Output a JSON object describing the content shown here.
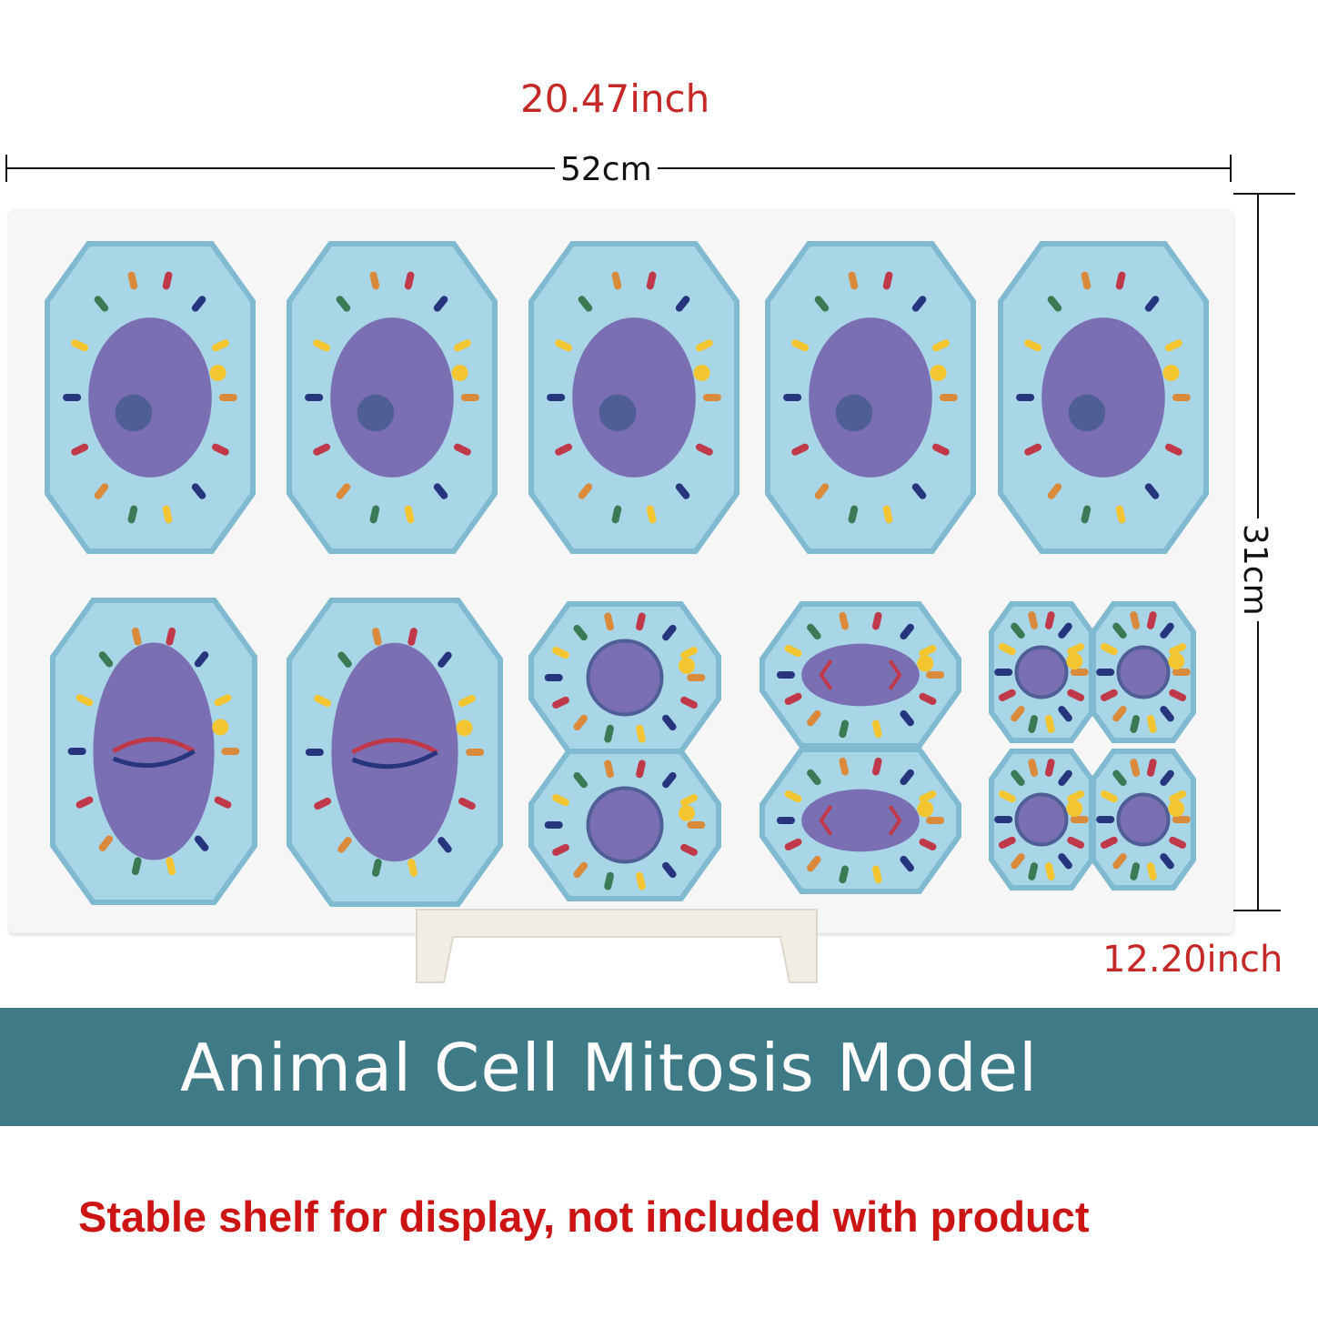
{
  "dimensions": {
    "width_inch": "20.47inch",
    "width_cm": "52cm",
    "height_cm": "31cm",
    "height_inch": "12.20inch"
  },
  "banner": {
    "title": "Animal Cell Mitosis Model"
  },
  "notice": {
    "text": "Stable shelf for display, not included with product"
  },
  "colors": {
    "cell_body": "#a9d6e6",
    "cell_border": "#7fbad0",
    "nucleus": "#7b6fb4",
    "banner": "#3f7b86",
    "dimension_text": "#c62828",
    "notice_text": "#cc1414"
  }
}
